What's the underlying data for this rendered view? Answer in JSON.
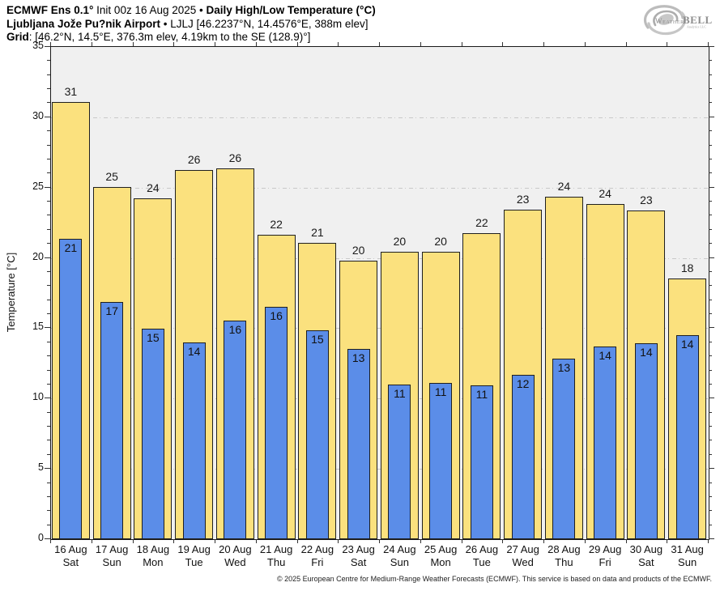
{
  "header": {
    "line1_bold1": "ECMWF Ens 0.1°",
    "line1_regular": " Init 00z 16 Aug 2025 • ",
    "line1_bold2": "Daily High/Low Temperature (°C)",
    "line2_bold": "Ljubljana Jože Pu?nik Airport",
    "line2_regular": " • LJLJ [46.2237°N, 14.4576°E, 388m elev]",
    "line3_bold": "Grid",
    "line3_regular": ": [46.2°N, 14.5°E, 376.3m elev, 4.19km to the SE (128.9)°]"
  },
  "logo": {
    "weather": "Weather",
    "bell": "BELL",
    "tagline": "Analytics LLC"
  },
  "footer_text": "© 2025 European Centre for Medium-Range Weather Forecasts (ECMWF). This service is based on data and products of the ECMWF.",
  "chart_data": {
    "type": "bar",
    "title": "Daily High/Low Temperature (°C)",
    "subtitle": "ECMWF Ens 0.1° Init 00z 16 Aug 2025 — Ljubljana Jože Pu?nik Airport (LJLJ)",
    "xlabel": "",
    "ylabel": "Temperature [°C]",
    "ylim": [
      0,
      35
    ],
    "yticks": [
      0,
      5,
      10,
      15,
      20,
      25,
      30,
      35
    ],
    "gridlines_at": [
      5,
      10,
      15,
      20,
      25,
      30
    ],
    "grid": "horizontal dash-dot, light gray",
    "legend_position": "none",
    "colors": {
      "high": "#fbe17e",
      "low": "#5b8de8",
      "bar_border": "#1f1f1f",
      "plot_bg": "#f0f0f0"
    },
    "days": [
      {
        "date": "16 Aug",
        "weekday": "Sat",
        "high": 31.0,
        "low": 21.3,
        "high_label": "31",
        "low_label": "21"
      },
      {
        "date": "17 Aug",
        "weekday": "Sun",
        "high": 25.0,
        "low": 16.8,
        "high_label": "25",
        "low_label": "17"
      },
      {
        "date": "18 Aug",
        "weekday": "Mon",
        "high": 24.2,
        "low": 14.9,
        "high_label": "24",
        "low_label": "15"
      },
      {
        "date": "19 Aug",
        "weekday": "Tue",
        "high": 26.2,
        "low": 13.95,
        "high_label": "26",
        "low_label": "14"
      },
      {
        "date": "20 Aug",
        "weekday": "Wed",
        "high": 26.3,
        "low": 15.5,
        "high_label": "26",
        "low_label": "16"
      },
      {
        "date": "21 Aug",
        "weekday": "Thu",
        "high": 21.6,
        "low": 16.45,
        "high_label": "22",
        "low_label": "16"
      },
      {
        "date": "22 Aug",
        "weekday": "Fri",
        "high": 21.0,
        "low": 14.8,
        "high_label": "21",
        "low_label": "15"
      },
      {
        "date": "23 Aug",
        "weekday": "Sat",
        "high": 19.75,
        "low": 13.45,
        "high_label": "20",
        "low_label": "13"
      },
      {
        "date": "24 Aug",
        "weekday": "Sun",
        "high": 20.4,
        "low": 10.95,
        "high_label": "20",
        "low_label": "11"
      },
      {
        "date": "25 Aug",
        "weekday": "Mon",
        "high": 20.35,
        "low": 11.05,
        "high_label": "20",
        "low_label": "11"
      },
      {
        "date": "26 Aug",
        "weekday": "Tue",
        "high": 21.7,
        "low": 10.9,
        "high_label": "22",
        "low_label": "11"
      },
      {
        "date": "27 Aug",
        "weekday": "Wed",
        "high": 23.4,
        "low": 11.6,
        "high_label": "23",
        "low_label": "12"
      },
      {
        "date": "28 Aug",
        "weekday": "Thu",
        "high": 24.3,
        "low": 12.8,
        "high_label": "24",
        "low_label": "13"
      },
      {
        "date": "29 Aug",
        "weekday": "Fri",
        "high": 23.8,
        "low": 13.65,
        "high_label": "24",
        "low_label": "14"
      },
      {
        "date": "30 Aug",
        "weekday": "Sat",
        "high": 23.3,
        "low": 13.9,
        "high_label": "23",
        "low_label": "14"
      },
      {
        "date": "31 Aug",
        "weekday": "Sun",
        "high": 18.45,
        "low": 14.45,
        "high_label": "18",
        "low_label": "14"
      }
    ]
  }
}
